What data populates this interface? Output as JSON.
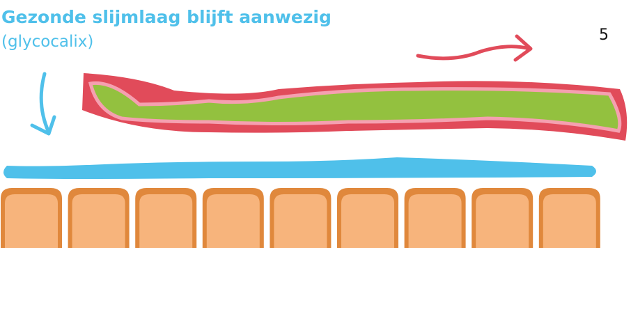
{
  "header": {
    "title": "Gezonde slijmlaag blijft aanwezig",
    "subtitle": "(glycocalix)"
  },
  "page_number": "5"
}
